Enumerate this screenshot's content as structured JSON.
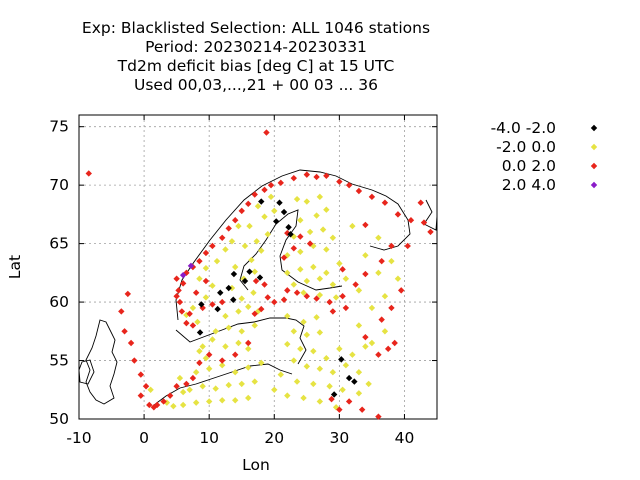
{
  "chart_data": {
    "type": "scatter",
    "title_lines": [
      "Exp: Blacklisted   Selection: ALL   1046 stations",
      "Period: 20230214-20230331",
      "Td2m deficit bias [deg C] at  15 UTC",
      "Used  00,03,...,21  + 00 03 ... 36"
    ],
    "xlabel": "Lon",
    "ylabel": "Lat",
    "xlim": [
      -10,
      45
    ],
    "ylim": [
      50,
      76
    ],
    "xticks": [
      -10,
      0,
      10,
      20,
      30,
      40
    ],
    "yticks": [
      50,
      55,
      60,
      65,
      70,
      75
    ],
    "grid": true,
    "legend_position": "top-right, outside plot",
    "series": [
      {
        "name": "-4.0 -2.0",
        "color": "#000000",
        "points": [
          [
            18,
            68.6
          ],
          [
            20.8,
            68.5
          ],
          [
            21.5,
            67.7
          ],
          [
            20.3,
            66.9
          ],
          [
            22.2,
            66.4
          ],
          [
            22.5,
            65.8
          ],
          [
            17.8,
            62.1
          ],
          [
            15.5,
            61.8
          ],
          [
            16.2,
            62.6
          ],
          [
            13.8,
            62.4
          ],
          [
            13,
            61.2
          ],
          [
            11.7,
            60.8
          ],
          [
            13.7,
            60.2
          ],
          [
            8.8,
            59.8
          ],
          [
            11.3,
            59.4
          ],
          [
            8.6,
            57.4
          ],
          [
            30.3,
            55.1
          ],
          [
            31.5,
            53.5
          ],
          [
            32.3,
            53.2
          ],
          [
            29.2,
            52.1
          ]
        ]
      },
      {
        "name": "-2.0 0.0",
        "color": "#e6e343",
        "points": [
          [
            6,
            51.2
          ],
          [
            8,
            51.4
          ],
          [
            10,
            51.5
          ],
          [
            12,
            51.6
          ],
          [
            14,
            51.6
          ],
          [
            16,
            51.8
          ],
          [
            4.5,
            51.1
          ],
          [
            3.5,
            51.4
          ],
          [
            7,
            52.5
          ],
          [
            9,
            52.8
          ],
          [
            11,
            52.6
          ],
          [
            13,
            52.9
          ],
          [
            15,
            53.0
          ],
          [
            17,
            53.2
          ],
          [
            6,
            52.3
          ],
          [
            8,
            54.0
          ],
          [
            10,
            54.3
          ],
          [
            12,
            54.6
          ],
          [
            14,
            54.0
          ],
          [
            16,
            54.4
          ],
          [
            18,
            54.8
          ],
          [
            9.5,
            55.2
          ],
          [
            9,
            56.2
          ],
          [
            10.5,
            56.8
          ],
          [
            12.5,
            56.2
          ],
          [
            14.5,
            56.5
          ],
          [
            8.5,
            55.8
          ],
          [
            16,
            56.0
          ],
          [
            11,
            57.5
          ],
          [
            13,
            57.8
          ],
          [
            15,
            57.5
          ],
          [
            17,
            58.0
          ],
          [
            12.5,
            58.8
          ],
          [
            14.5,
            59.2
          ],
          [
            16,
            59.6
          ],
          [
            17.5,
            59.2
          ],
          [
            15,
            60.3
          ],
          [
            16.8,
            60.8
          ],
          [
            13.5,
            61.2
          ],
          [
            15.3,
            62.0
          ],
          [
            17,
            62.6
          ],
          [
            14,
            63.0
          ],
          [
            16.5,
            63.6
          ],
          [
            18,
            64.4
          ],
          [
            15.5,
            64.8
          ],
          [
            17.3,
            65.2
          ],
          [
            19,
            65.8
          ],
          [
            16.2,
            66.5
          ],
          [
            18.5,
            67.3
          ],
          [
            20,
            67.8
          ],
          [
            17.5,
            68.2
          ],
          [
            19.5,
            69.0
          ],
          [
            8.2,
            58.3
          ],
          [
            6.5,
            58.9
          ],
          [
            7.5,
            59.5
          ],
          [
            9.5,
            60.4
          ],
          [
            10.5,
            61.4
          ],
          [
            8.5,
            62.0
          ],
          [
            9.5,
            62.9
          ],
          [
            11.2,
            63.5
          ],
          [
            12.5,
            64.5
          ],
          [
            13.5,
            65.2
          ],
          [
            14.5,
            66.5
          ],
          [
            22,
            64.0
          ],
          [
            24,
            64.3
          ],
          [
            26,
            64.8
          ],
          [
            28,
            64.5
          ],
          [
            23,
            65.6
          ],
          [
            25.5,
            66.0
          ],
          [
            27.5,
            66.2
          ],
          [
            29,
            65.5
          ],
          [
            24,
            67.0
          ],
          [
            26.5,
            67.4
          ],
          [
            28,
            67.9
          ],
          [
            25,
            68.6
          ],
          [
            27,
            69.0
          ],
          [
            23.5,
            68.8
          ],
          [
            22,
            62.5
          ],
          [
            24,
            62.8
          ],
          [
            26,
            63.0
          ],
          [
            28,
            62.5
          ],
          [
            30,
            63.3
          ],
          [
            23,
            61.5
          ],
          [
            25,
            61.8
          ],
          [
            27,
            62.0
          ],
          [
            29,
            61.5
          ],
          [
            31,
            62.0
          ],
          [
            24.5,
            60.8
          ],
          [
            27,
            60.6
          ],
          [
            29.5,
            60.4
          ],
          [
            22,
            58.8
          ],
          [
            24.5,
            58.3
          ],
          [
            26.5,
            58.7
          ],
          [
            23,
            57.5
          ],
          [
            25,
            57.2
          ],
          [
            27,
            57.4
          ],
          [
            22,
            56.4
          ],
          [
            24,
            56.0
          ],
          [
            26,
            55.8
          ],
          [
            28,
            55.2
          ],
          [
            30,
            56.0
          ],
          [
            32,
            55.5
          ],
          [
            34,
            56.2
          ],
          [
            23,
            55.0
          ],
          [
            25,
            54.5
          ],
          [
            27,
            54.3
          ],
          [
            29,
            54.0
          ],
          [
            31,
            54.6
          ],
          [
            33,
            54.0
          ],
          [
            21,
            53.8
          ],
          [
            23.5,
            53.2
          ],
          [
            26,
            53.0
          ],
          [
            28.5,
            52.8
          ],
          [
            30.5,
            52.5
          ],
          [
            33,
            52.2
          ],
          [
            20,
            52.5
          ],
          [
            22,
            52.0
          ],
          [
            24.5,
            51.8
          ],
          [
            27,
            51.5
          ],
          [
            29.5,
            51.0
          ],
          [
            33,
            58.0
          ],
          [
            35,
            59.5
          ],
          [
            37,
            60.5
          ],
          [
            33,
            61.0
          ],
          [
            36,
            62.5
          ],
          [
            34,
            64.0
          ],
          [
            38,
            63.5
          ],
          [
            36,
            65.5
          ],
          [
            32,
            66.5
          ],
          [
            39,
            62.0
          ],
          [
            37,
            57.5
          ],
          [
            35,
            56.5
          ],
          [
            34.5,
            53.0
          ],
          [
            1,
            52.5
          ],
          [
            5.5,
            53.5
          ]
        ]
      },
      {
        "name": "0.0 2.0",
        "color": "#e8251c",
        "points": [
          [
            -8.5,
            71.0
          ],
          [
            18.8,
            74.5
          ],
          [
            -2.5,
            60.7
          ],
          [
            -3.5,
            59.2
          ],
          [
            -3,
            57.5
          ],
          [
            -2,
            56.5
          ],
          [
            -1.5,
            55.0
          ],
          [
            -0.5,
            53.8
          ],
          [
            0.3,
            52.8
          ],
          [
            0.8,
            51.2
          ],
          [
            1.5,
            51.0
          ],
          [
            -0.5,
            52.0
          ],
          [
            5,
            62.0
          ],
          [
            5.3,
            61.0
          ],
          [
            5.5,
            60.0
          ],
          [
            5.8,
            59.2
          ],
          [
            6.5,
            58.2
          ],
          [
            7.5,
            58.0
          ],
          [
            5,
            60.5
          ],
          [
            6,
            61.6
          ],
          [
            6.5,
            62.5
          ],
          [
            7.5,
            63.0
          ],
          [
            8.5,
            63.5
          ],
          [
            9.5,
            64.2
          ],
          [
            10.5,
            64.8
          ],
          [
            12,
            65.5
          ],
          [
            13,
            66.3
          ],
          [
            14,
            67.0
          ],
          [
            15,
            67.8
          ],
          [
            16,
            68.4
          ],
          [
            17,
            69.2
          ],
          [
            18.5,
            69.6
          ],
          [
            19.5,
            70.0
          ],
          [
            21,
            70.2
          ],
          [
            23,
            70.6
          ],
          [
            25,
            70.9
          ],
          [
            26.5,
            70.7
          ],
          [
            28,
            70.8
          ],
          [
            30,
            70.3
          ],
          [
            31.5,
            70.0
          ],
          [
            33,
            69.5
          ],
          [
            35,
            69.0
          ],
          [
            37,
            68.5
          ],
          [
            39,
            67.5
          ],
          [
            41,
            67.0
          ],
          [
            43,
            66.8
          ],
          [
            44,
            66.0
          ],
          [
            42.5,
            68.5
          ],
          [
            40.5,
            64.8
          ],
          [
            38,
            64.8
          ],
          [
            34,
            66.6
          ],
          [
            22,
            65.9
          ],
          [
            24,
            65.6
          ],
          [
            25.5,
            65.0
          ],
          [
            23,
            64.6
          ],
          [
            21.5,
            63.8
          ],
          [
            22,
            61.0
          ],
          [
            23.5,
            60.8
          ],
          [
            25,
            60.5
          ],
          [
            21.5,
            60.2
          ],
          [
            20,
            60.0
          ],
          [
            26.5,
            60.3
          ],
          [
            28.5,
            60.0
          ],
          [
            30.5,
            60.5
          ],
          [
            32.5,
            61.5
          ],
          [
            31,
            59.5
          ],
          [
            29,
            59.2
          ],
          [
            9,
            59.5
          ],
          [
            10.5,
            59.8
          ],
          [
            12,
            60.0
          ],
          [
            7,
            59.0
          ],
          [
            8,
            60.8
          ],
          [
            9.5,
            61.8
          ],
          [
            16,
            56.5
          ],
          [
            14,
            55.5
          ],
          [
            12,
            55.0
          ],
          [
            10,
            55.5
          ],
          [
            8.5,
            54.8
          ],
          [
            7.5,
            53.5
          ],
          [
            6.5,
            53.0
          ],
          [
            5,
            52.8
          ],
          [
            4,
            52.0
          ],
          [
            3,
            51.5
          ],
          [
            2,
            51.2
          ],
          [
            17,
            59.0
          ],
          [
            18,
            59.4
          ],
          [
            19,
            60.4
          ],
          [
            18.5,
            61.5
          ],
          [
            17.2,
            61.8
          ],
          [
            28.8,
            51.7
          ],
          [
            30,
            50.8
          ],
          [
            31.5,
            51.5
          ],
          [
            33.5,
            50.8
          ],
          [
            36,
            50.2
          ],
          [
            36,
            55.5
          ],
          [
            37.5,
            56.0
          ],
          [
            38.5,
            56.5
          ],
          [
            34,
            57.0
          ],
          [
            36.5,
            58.5
          ],
          [
            38,
            59.5
          ],
          [
            39.5,
            61.0
          ],
          [
            30.5,
            62.8
          ],
          [
            34,
            62.4
          ],
          [
            36.5,
            63.5
          ]
        ]
      },
      {
        "name": "2.0 4.0",
        "color": "#8a1cc8",
        "points": [
          [
            6,
            62.3
          ],
          [
            7.2,
            63.1
          ]
        ]
      }
    ]
  }
}
